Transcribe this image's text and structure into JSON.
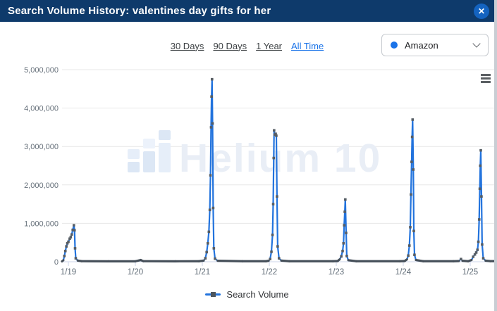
{
  "header": {
    "title": "Search Volume History: valentines day gifts for her",
    "close_glyph": "✕",
    "bg_color": "#0e3a6b",
    "close_color": "#1463c0"
  },
  "controls": {
    "ranges": [
      {
        "label": "30 Days",
        "active": false
      },
      {
        "label": "90 Days",
        "active": false
      },
      {
        "label": "1 Year",
        "active": false
      },
      {
        "label": "All Time",
        "active": true
      }
    ],
    "active_color": "#1a73e8",
    "marketplace": {
      "label": "Amazon",
      "dot_color": "#1a73e8"
    }
  },
  "legend": {
    "label": "Search Volume"
  },
  "chart_data": {
    "type": "line",
    "title": "",
    "xlabel": "",
    "ylabel": "Search Volume",
    "ylim": [
      0,
      5000000
    ],
    "grid": "horizontal",
    "legend_position": "bottom",
    "watermark": "Helium 10",
    "line_color": "#2273dd",
    "marker_color": "#565d64",
    "baseline_color": "#454f59",
    "grid_color": "#e7e7e7",
    "axis_color": "#ccd6eb",
    "label_color": "#66707a",
    "yticks": [
      {
        "value": 0,
        "label": "0"
      },
      {
        "value": 1000000,
        "label": "1,000,000"
      },
      {
        "value": 2000000,
        "label": "2,000,000"
      },
      {
        "value": 3000000,
        "label": "3,000,000"
      },
      {
        "value": 4000000,
        "label": "4,000,000"
      },
      {
        "value": 5000000,
        "label": "5,000,000"
      }
    ],
    "xticks": [
      {
        "t": 0,
        "label": "1/19"
      },
      {
        "t": 1,
        "label": "1/20"
      },
      {
        "t": 2,
        "label": "1/21"
      },
      {
        "t": 3,
        "label": "1/22"
      },
      {
        "t": 4,
        "label": "1/23"
      },
      {
        "t": 5,
        "label": "1/24"
      },
      {
        "t": 6,
        "label": "1/25"
      }
    ],
    "series": [
      {
        "name": "Search Volume",
        "points": [
          [
            -0.095,
            10000
          ],
          [
            -0.075,
            40000
          ],
          [
            -0.06,
            150000
          ],
          [
            -0.045,
            280000
          ],
          [
            -0.03,
            400000
          ],
          [
            -0.015,
            480000
          ],
          [
            0,
            520000
          ],
          [
            0.02,
            600000
          ],
          [
            0.035,
            640000
          ],
          [
            0.05,
            710000
          ],
          [
            0.065,
            830000
          ],
          [
            0.082,
            950000
          ],
          [
            0.092,
            820000
          ],
          [
            0.1,
            350000
          ],
          [
            0.11,
            90000
          ],
          [
            0.14,
            30000
          ],
          [
            0.2,
            15000
          ],
          [
            0.6,
            12000
          ],
          [
            1.0,
            12000
          ],
          [
            1.08,
            45000
          ],
          [
            1.12,
            15000
          ],
          [
            1.6,
            12000
          ],
          [
            1.95,
            14000
          ],
          [
            2.02,
            30000
          ],
          [
            2.045,
            90000
          ],
          [
            2.065,
            250000
          ],
          [
            2.082,
            480000
          ],
          [
            2.098,
            780000
          ],
          [
            2.112,
            1350000
          ],
          [
            2.122,
            2250000
          ],
          [
            2.131,
            3500000
          ],
          [
            2.138,
            4300000
          ],
          [
            2.145,
            4750000
          ],
          [
            2.153,
            3600000
          ],
          [
            2.162,
            1400000
          ],
          [
            2.172,
            350000
          ],
          [
            2.19,
            80000
          ],
          [
            2.23,
            25000
          ],
          [
            2.6,
            14000
          ],
          [
            2.95,
            14000
          ],
          [
            2.99,
            25000
          ],
          [
            3.012,
            70000
          ],
          [
            3.032,
            260000
          ],
          [
            3.048,
            700000
          ],
          [
            3.058,
            1500000
          ],
          [
            3.066,
            2700000
          ],
          [
            3.072,
            3420000
          ],
          [
            3.082,
            3310000
          ],
          [
            3.095,
            3330000
          ],
          [
            3.105,
            3280000
          ],
          [
            3.115,
            1700000
          ],
          [
            3.125,
            400000
          ],
          [
            3.145,
            90000
          ],
          [
            3.18,
            30000
          ],
          [
            3.3,
            14000
          ],
          [
            3.95,
            14000
          ],
          [
            4.02,
            18000
          ],
          [
            4.05,
            60000
          ],
          [
            4.075,
            140000
          ],
          [
            4.095,
            280000
          ],
          [
            4.108,
            480000
          ],
          [
            4.118,
            950000
          ],
          [
            4.127,
            1300000
          ],
          [
            4.135,
            1620000
          ],
          [
            4.147,
            750000
          ],
          [
            4.157,
            150000
          ],
          [
            4.18,
            40000
          ],
          [
            4.3,
            14000
          ],
          [
            4.95,
            14000
          ],
          [
            5.02,
            18000
          ],
          [
            5.055,
            60000
          ],
          [
            5.075,
            160000
          ],
          [
            5.092,
            420000
          ],
          [
            5.105,
            900000
          ],
          [
            5.115,
            1750000
          ],
          [
            5.125,
            2600000
          ],
          [
            5.133,
            3250000
          ],
          [
            5.14,
            3700000
          ],
          [
            5.15,
            2400000
          ],
          [
            5.158,
            800000
          ],
          [
            5.168,
            180000
          ],
          [
            5.19,
            45000
          ],
          [
            5.3,
            14000
          ],
          [
            5.75,
            14000
          ],
          [
            5.83,
            18000
          ],
          [
            5.862,
            70000
          ],
          [
            5.885,
            25000
          ],
          [
            5.97,
            14000
          ],
          [
            6.02,
            45000
          ],
          [
            6.045,
            130000
          ],
          [
            6.07,
            190000
          ],
          [
            6.09,
            240000
          ],
          [
            6.108,
            310000
          ],
          [
            6.122,
            520000
          ],
          [
            6.134,
            1100000
          ],
          [
            6.143,
            1900000
          ],
          [
            6.15,
            2500000
          ],
          [
            6.158,
            2900000
          ],
          [
            6.168,
            1700000
          ],
          [
            6.178,
            450000
          ],
          [
            6.195,
            90000
          ],
          [
            6.23,
            28000
          ],
          [
            6.3,
            16000
          ],
          [
            6.36,
            16000
          ]
        ]
      }
    ]
  }
}
